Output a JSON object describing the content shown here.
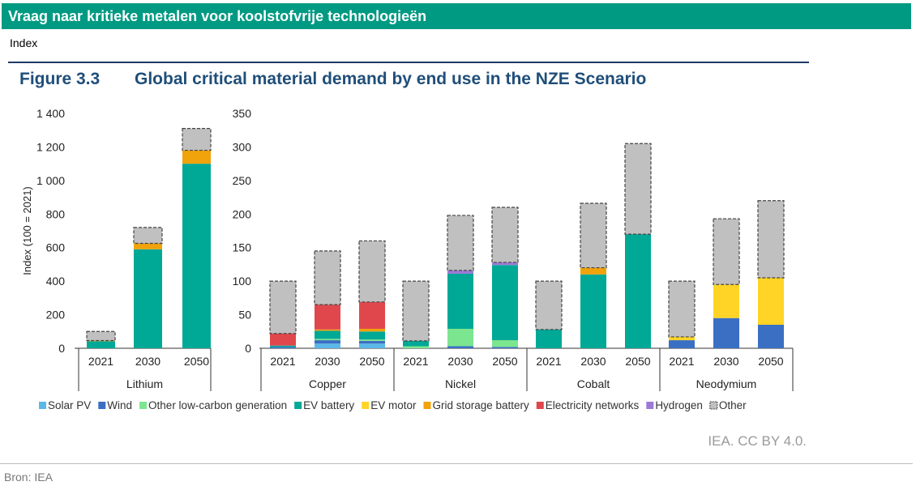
{
  "header": {
    "title": "Vraag naar kritieke metalen voor koolstofvrije technologieën",
    "subtitle": "Index"
  },
  "figure": {
    "number": "Figure 3.3",
    "title": "Global critical material demand by end use in the NZE Scenario"
  },
  "credit": "IEA. CC BY 4.0.",
  "source": "Bron: IEA",
  "colors": {
    "Solar PV": "#5bb8e6",
    "Wind": "#3a6fc4",
    "Other low-carbon generation": "#7ce58f",
    "EV battery": "#00a896",
    "EV motor": "#ffd426",
    "Grid storage battery": "#f0a30a",
    "Electricity networks": "#e0474c",
    "Hydrogen": "#9c7ad6",
    "Other": "#c0c0c0"
  },
  "chart_data": [
    {
      "type": "bar",
      "stacked": true,
      "title": "",
      "ylabel": "Index (100 = 2021)",
      "ylim": [
        0,
        1400
      ],
      "yticks": [
        0,
        200,
        400,
        600,
        800,
        1000,
        1200,
        1400
      ],
      "ytick_labels": [
        "0",
        "200",
        "400",
        "600",
        "800",
        "1 000",
        "1 200",
        "1 400"
      ],
      "groups": [
        {
          "name": "Lithium",
          "bars": [
            {
              "year": "2021",
              "segments": {
                "EV battery": 42,
                "Grid storage battery": 4,
                "Other": 54
              }
            },
            {
              "year": "2030",
              "segments": {
                "EV battery": 590,
                "Grid storage battery": 35,
                "Other": 95
              }
            },
            {
              "year": "2050",
              "segments": {
                "EV battery": 1100,
                "Grid storage battery": 80,
                "Other": 130
              }
            }
          ]
        }
      ]
    },
    {
      "type": "bar",
      "stacked": true,
      "title": "",
      "ylabel": "",
      "ylim": [
        0,
        350
      ],
      "yticks": [
        0,
        50,
        100,
        150,
        200,
        250,
        300,
        350
      ],
      "ytick_labels": [
        "0",
        "50",
        "100",
        "150",
        "200",
        "250",
        "300",
        "350"
      ],
      "groups": [
        {
          "name": "Copper",
          "bars": [
            {
              "year": "2021",
              "segments": {
                "Wind": 2,
                "EV battery": 2,
                "Electricity networks": 18,
                "Other": 78
              }
            },
            {
              "year": "2030",
              "segments": {
                "Solar PV": 7,
                "Wind": 5,
                "Other low-carbon generation": 2,
                "EV battery": 12,
                "Grid storage battery": 2,
                "Electricity networks": 37,
                "Other": 80
              }
            },
            {
              "year": "2050",
              "segments": {
                "Solar PV": 7,
                "Wind": 4,
                "Other low-carbon generation": 2,
                "EV battery": 12,
                "Grid storage battery": 4,
                "Electricity networks": 40,
                "Other": 91
              }
            }
          ]
        },
        {
          "name": "Nickel",
          "bars": [
            {
              "year": "2021",
              "segments": {
                "Other low-carbon generation": 3,
                "EV battery": 8,
                "Other": 89
              }
            },
            {
              "year": "2030",
              "segments": {
                "Wind": 3,
                "Other low-carbon generation": 26,
                "EV battery": 82,
                "Hydrogen": 5,
                "Other": 82
              }
            },
            {
              "year": "2050",
              "segments": {
                "Wind": 2,
                "Other low-carbon generation": 10,
                "EV battery": 112,
                "Hydrogen": 4,
                "Other": 82
              }
            }
          ]
        },
        {
          "name": "Cobalt",
          "bars": [
            {
              "year": "2021",
              "segments": {
                "EV battery": 28,
                "Other": 72
              }
            },
            {
              "year": "2030",
              "segments": {
                "EV battery": 110,
                "Grid storage battery": 10,
                "Other": 96
              }
            },
            {
              "year": "2050",
              "segments": {
                "EV battery": 170,
                "Other": 135
              }
            }
          ]
        },
        {
          "name": "Neodymium",
          "bars": [
            {
              "year": "2021",
              "segments": {
                "Wind": 12,
                "EV motor": 5,
                "Other": 83
              }
            },
            {
              "year": "2030",
              "segments": {
                "Wind": 45,
                "EV motor": 50,
                "Other": 98
              }
            },
            {
              "year": "2050",
              "segments": {
                "Wind": 35,
                "EV motor": 70,
                "Other": 115
              }
            }
          ]
        }
      ]
    }
  ],
  "legend": [
    "Solar PV",
    "Wind",
    "Other low-carbon generation",
    "EV battery",
    "EV motor",
    "Grid storage battery",
    "Electricity networks",
    "Hydrogen",
    "Other"
  ]
}
